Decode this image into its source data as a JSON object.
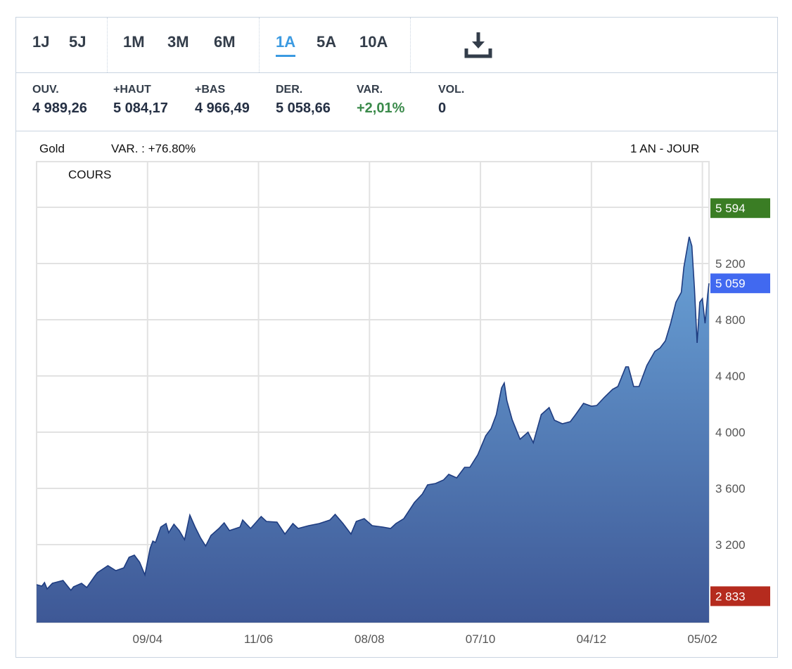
{
  "toolbar": {
    "periods": [
      "1J",
      "5J",
      "1M",
      "3M",
      "6M",
      "1A",
      "5A",
      "10A"
    ],
    "active_period": "1A",
    "download_icon": "download-icon"
  },
  "stats": [
    {
      "label": "OUV.",
      "value": "4 989,26"
    },
    {
      "label": "+HAUT",
      "value": "5 084,17"
    },
    {
      "label": "+BAS",
      "value": "4 966,49"
    },
    {
      "label": "DER.",
      "value": "5 058,66"
    },
    {
      "label": "VAR.",
      "value": "+2,01%"
    },
    {
      "label": "VOL.",
      "value": "0"
    }
  ],
  "chart_header": {
    "instrument": "Gold",
    "variation": "VAR. : +76.80%",
    "range": "1 AN - JOUR",
    "series_label": "COURS"
  },
  "colors": {
    "up": "#3a8a4a",
    "high_badge": "#3a7d24",
    "last_badge": "#4169f0",
    "low_badge": "#b52b1e",
    "area_top": "#6aa3d8",
    "area_bottom": "#3e5896",
    "line": "#1e3c80",
    "accent": "#3b9ae1"
  },
  "chart_data": {
    "type": "area",
    "title": "Gold",
    "xlabel": "",
    "ylabel": "",
    "x_unit": "trading day index",
    "xlim": [
      0,
      254.5
    ],
    "ylim": [
      2645,
      5925
    ],
    "grid": true,
    "x_ticks": [
      {
        "x": 42,
        "label": "09/04"
      },
      {
        "x": 84,
        "label": "11/06"
      },
      {
        "x": 126,
        "label": "08/08"
      },
      {
        "x": 168,
        "label": "07/10"
      },
      {
        "x": 210,
        "label": "04/12"
      },
      {
        "x": 252,
        "label": "05/02"
      }
    ],
    "y_ticks": [
      {
        "y": 3200,
        "label": "3 200"
      },
      {
        "y": 3600,
        "label": "3 600"
      },
      {
        "y": 4000,
        "label": "4 000"
      },
      {
        "y": 4400,
        "label": "4 400"
      },
      {
        "y": 4800,
        "label": "4 800"
      },
      {
        "y": 5200,
        "label": "5 200"
      },
      {
        "y": 5600,
        "label": ""
      }
    ],
    "markers": [
      {
        "name": "high",
        "value": 5594,
        "label": "5 594"
      },
      {
        "name": "last",
        "value": 5059,
        "label": "5 059"
      },
      {
        "name": "low",
        "value": 2833,
        "label": "2 833"
      }
    ],
    "x": [
      0,
      2,
      3,
      4,
      6,
      10,
      13,
      14,
      17,
      19,
      22,
      23,
      27,
      30,
      33,
      35,
      37,
      39,
      41,
      43,
      44,
      45,
      47,
      49,
      50,
      52,
      54,
      56,
      58,
      60,
      62,
      64,
      66,
      69,
      70,
      71,
      73,
      77,
      78,
      81,
      85,
      87,
      91,
      94,
      97,
      99,
      103,
      107,
      111,
      113,
      116,
      119,
      121,
      124,
      127,
      131,
      134,
      136,
      139,
      143,
      146,
      148,
      151,
      154,
      156,
      159,
      162,
      164,
      167,
      170,
      172,
      174,
      176,
      177,
      178,
      180,
      183,
      186,
      188,
      191,
      194,
      196,
      199,
      202,
      204,
      207,
      210,
      212,
      215,
      218,
      220,
      223,
      224,
      226,
      228,
      231,
      234,
      236,
      238,
      240,
      242,
      244,
      245,
      247,
      248,
      249,
      250,
      251,
      252,
      253,
      254,
      254.5
    ],
    "values": [
      2915,
      2905,
      2930,
      2885,
      2925,
      2945,
      2875,
      2900,
      2925,
      2895,
      2975,
      3000,
      3050,
      3015,
      3035,
      3110,
      3125,
      3075,
      2985,
      3175,
      3225,
      3215,
      3325,
      3350,
      3285,
      3345,
      3300,
      3235,
      3410,
      3325,
      3250,
      3190,
      3265,
      3315,
      3335,
      3355,
      3300,
      3325,
      3375,
      3315,
      3400,
      3365,
      3360,
      3275,
      3350,
      3315,
      3335,
      3350,
      3375,
      3415,
      3350,
      3275,
      3365,
      3385,
      3335,
      3325,
      3315,
      3350,
      3385,
      3500,
      3560,
      3625,
      3635,
      3660,
      3700,
      3675,
      3750,
      3750,
      3840,
      3975,
      4025,
      4125,
      4315,
      4350,
      4225,
      4090,
      3950,
      4000,
      3925,
      4125,
      4175,
      4085,
      4060,
      4075,
      4125,
      4205,
      4185,
      4190,
      4250,
      4305,
      4325,
      4465,
      4465,
      4325,
      4325,
      4475,
      4575,
      4600,
      4650,
      4775,
      4925,
      4995,
      5175,
      5390,
      5325,
      5025,
      4635,
      4925,
      4950,
      4775,
      4975,
      5059
    ]
  }
}
